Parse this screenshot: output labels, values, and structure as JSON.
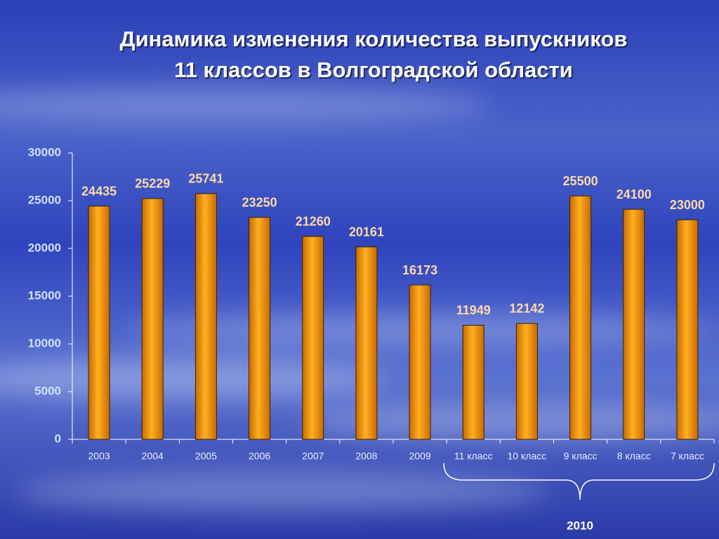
{
  "chart_data": {
    "type": "bar",
    "title": [
      "Динамика изменения количества выпускников",
      "11 классов в Волгоградской области"
    ],
    "categories": [
      "2003",
      "2004",
      "2005",
      "2006",
      "2007",
      "2008",
      "2009",
      "11 класс",
      "10 класс",
      "9 класс",
      "8 класс",
      "7 класс"
    ],
    "values": [
      24435,
      25229,
      25741,
      23250,
      21260,
      20161,
      16173,
      11949,
      12142,
      25500,
      24100,
      23000
    ],
    "color": "#f39a0c",
    "ylim": [
      0,
      30000
    ],
    "yticks": [
      0,
      5000,
      10000,
      15000,
      20000,
      25000,
      30000
    ],
    "annotation": "2010"
  }
}
